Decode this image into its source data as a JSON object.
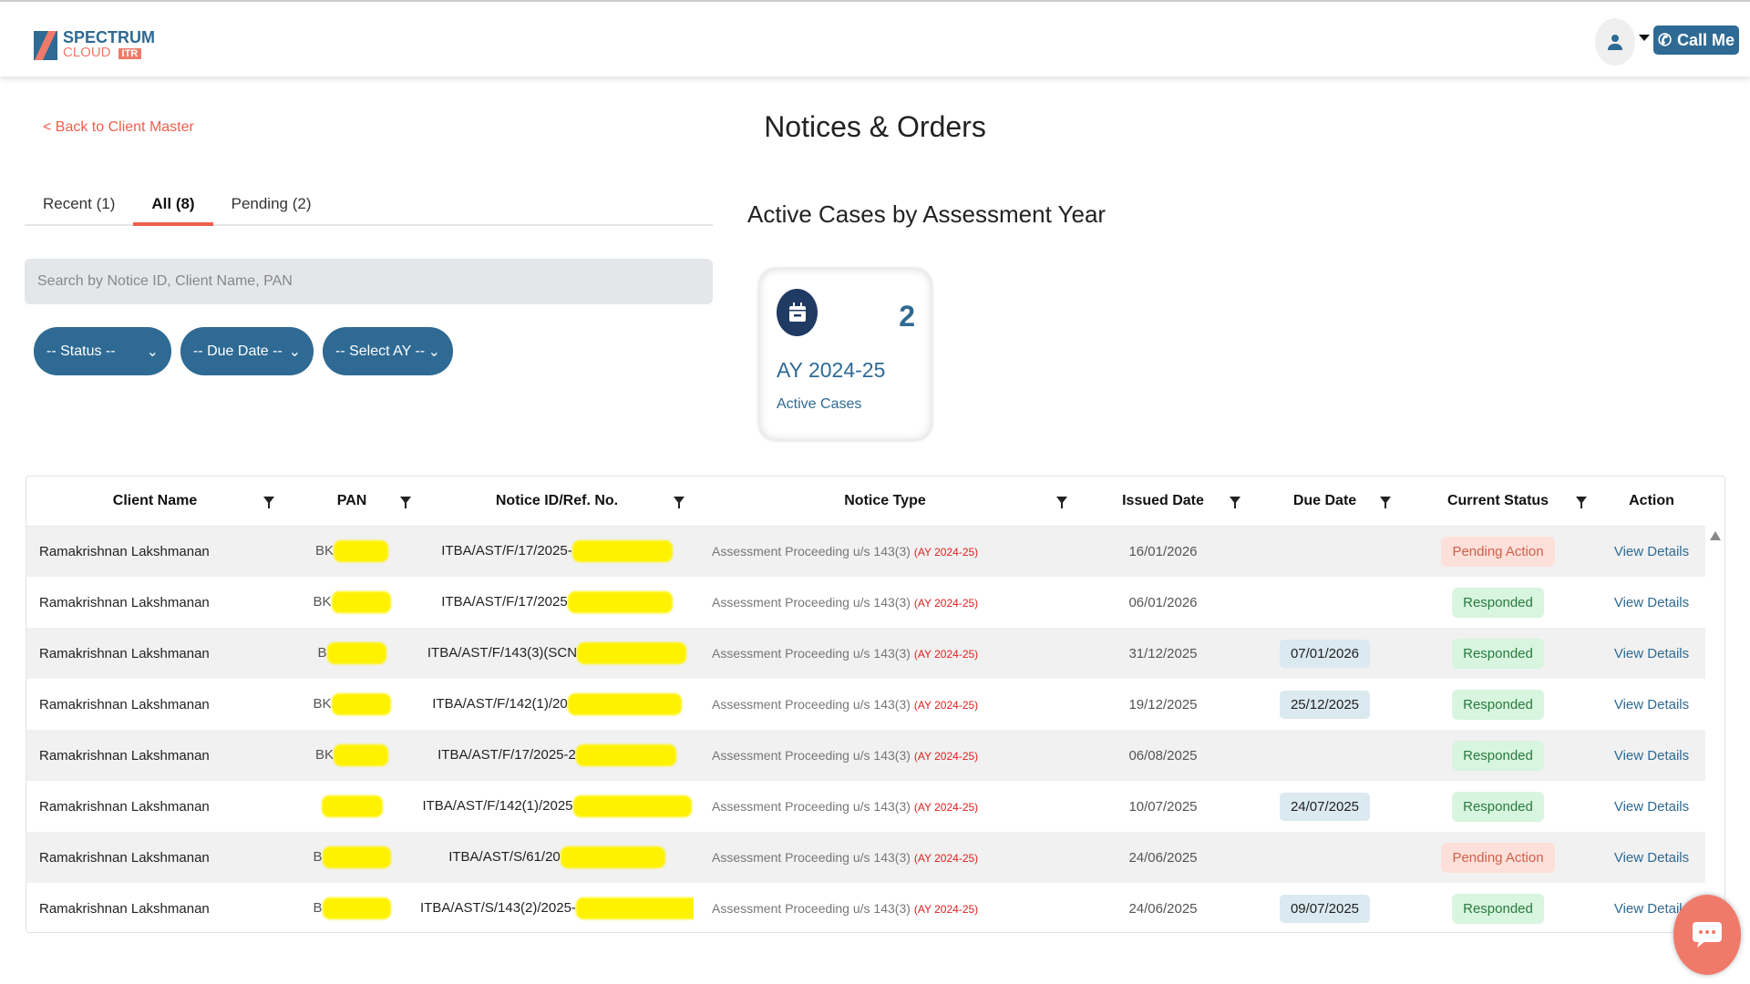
{
  "header": {
    "logo_line1": "SPECTRUM",
    "logo_line2": "CLOUD",
    "logo_badge": "ITR",
    "call_me": "Call Me",
    "user_icon": "user-icon",
    "phone_icon": "phone-icon"
  },
  "back_link": "< Back to Client Master",
  "page_title": "Notices & Orders",
  "tabs": [
    {
      "label": "Recent (1)"
    },
    {
      "label": "All (8)",
      "active": true
    },
    {
      "label": "Pending (2)"
    }
  ],
  "search": {
    "placeholder": "Search by Notice ID, Client Name, PAN",
    "value": ""
  },
  "filters": {
    "status": "-- Status --",
    "due_date": "-- Due Date --",
    "ay": "-- Select AY --"
  },
  "section_title": "Active Cases by Assessment Year",
  "ay_card": {
    "count": "2",
    "ay": "AY 2024-25",
    "label": "Active Cases",
    "icon": "calendar-icon"
  },
  "table": {
    "columns": [
      "Client Name",
      "PAN",
      "Notice ID/Ref. No.",
      "Notice Type",
      "Issued Date",
      "Due Date",
      "Current Status",
      "Action"
    ],
    "rows": [
      {
        "client": "Ramakrishnan Lakshmanan",
        "pan": "BK",
        "notice_id": "ITBA/AST/F/17/2025-",
        "type": "Assessment Proceeding u/s 143(3)",
        "ay": "(AY 2024-25)",
        "issued": "16/01/2026",
        "due": "",
        "status": "Pending Action",
        "action": "View Details"
      },
      {
        "client": "Ramakrishnan Lakshmanan",
        "pan": "BK",
        "notice_id": "ITBA/AST/F/17/2025",
        "type": "Assessment Proceeding u/s 143(3)",
        "ay": "(AY 2024-25)",
        "issued": "06/01/2026",
        "due": "",
        "status": "Responded",
        "action": "View Details"
      },
      {
        "client": "Ramakrishnan Lakshmanan",
        "pan": "B",
        "notice_id": "ITBA/AST/F/143(3)(SCN",
        "type": "Assessment Proceeding u/s 143(3)",
        "ay": "(AY 2024-25)",
        "issued": "31/12/2025",
        "due": "07/01/2026",
        "status": "Responded",
        "action": "View Details"
      },
      {
        "client": "Ramakrishnan Lakshmanan",
        "pan": "BK",
        "notice_id": "ITBA/AST/F/142(1)/20",
        "type": "Assessment Proceeding u/s 143(3)",
        "ay": "(AY 2024-25)",
        "issued": "19/12/2025",
        "due": "25/12/2025",
        "status": "Responded",
        "action": "View Details"
      },
      {
        "client": "Ramakrishnan Lakshmanan",
        "pan": "BK",
        "notice_id": "ITBA/AST/F/17/2025-2",
        "type": "Assessment Proceeding u/s 143(3)",
        "ay": "(AY 2024-25)",
        "issued": "06/08/2025",
        "due": "",
        "status": "Responded",
        "action": "View Details"
      },
      {
        "client": "Ramakrishnan Lakshmanan",
        "pan": "",
        "notice_id": "ITBA/AST/F/142(1)/2025",
        "type": "Assessment Proceeding u/s 143(3)",
        "ay": "(AY 2024-25)",
        "issued": "10/07/2025",
        "due": "24/07/2025",
        "status": "Responded",
        "action": "View Details"
      },
      {
        "client": "Ramakrishnan Lakshmanan",
        "pan": "B",
        "notice_id": "ITBA/AST/S/61/20",
        "type": "Assessment Proceeding u/s 143(3)",
        "ay": "(AY 2024-25)",
        "issued": "24/06/2025",
        "due": "",
        "status": "Pending Action",
        "action": "View Details"
      },
      {
        "client": "Ramakrishnan Lakshmanan",
        "pan": "B",
        "notice_id": "ITBA/AST/S/143(2)/2025-",
        "type": "Assessment Proceeding u/s 143(3)",
        "ay": "(AY 2024-25)",
        "issued": "24/06/2025",
        "due": "09/07/2025",
        "status": "Responded",
        "action": "View Details"
      }
    ]
  },
  "colors": {
    "brand": "#2e6a94",
    "accent": "#f0604d",
    "pending": "#fde0da",
    "responded": "#d7f5df"
  },
  "chat_icon": "chat-icon"
}
